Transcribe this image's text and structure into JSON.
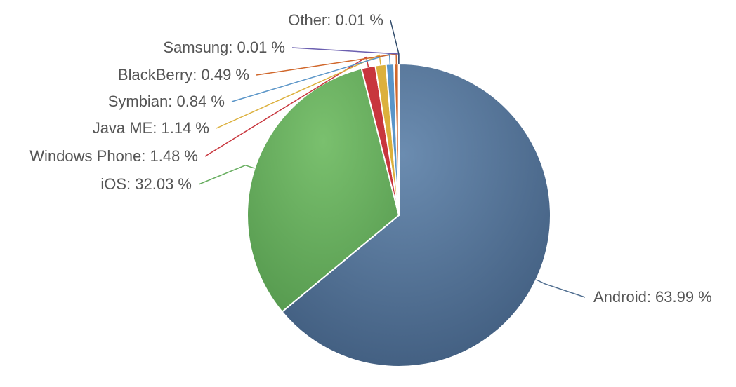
{
  "chart_data": {
    "type": "pie",
    "title": "",
    "slices": [
      {
        "name": "Android",
        "value": 63.99,
        "color": "#4f6d8f"
      },
      {
        "name": "iOS",
        "value": 32.03,
        "color": "#66ad5e"
      },
      {
        "name": "Windows Phone",
        "value": 1.48,
        "color": "#c8363d"
      },
      {
        "name": "Java ME",
        "value": 1.14,
        "color": "#dcb03c"
      },
      {
        "name": "Symbian",
        "value": 0.84,
        "color": "#5a95c8"
      },
      {
        "name": "BlackBerry",
        "value": 0.49,
        "color": "#d0672b"
      },
      {
        "name": "Samsung",
        "value": 0.01,
        "color": "#6b5fb0"
      },
      {
        "name": "Other",
        "value": 0.01,
        "color": "#2f4a6a"
      }
    ],
    "labels": [
      "Android: 63.99 %",
      "iOS: 32.03 %",
      "Windows Phone: 1.48 %",
      "Java ME: 1.14 %",
      "Symbian: 0.84 %",
      "BlackBerry: 0.49 %",
      "Samsung: 0.01 %",
      "Other: 0.01 %"
    ],
    "start": "12 o'clock",
    "direction": "clockwise",
    "legend": "none"
  }
}
